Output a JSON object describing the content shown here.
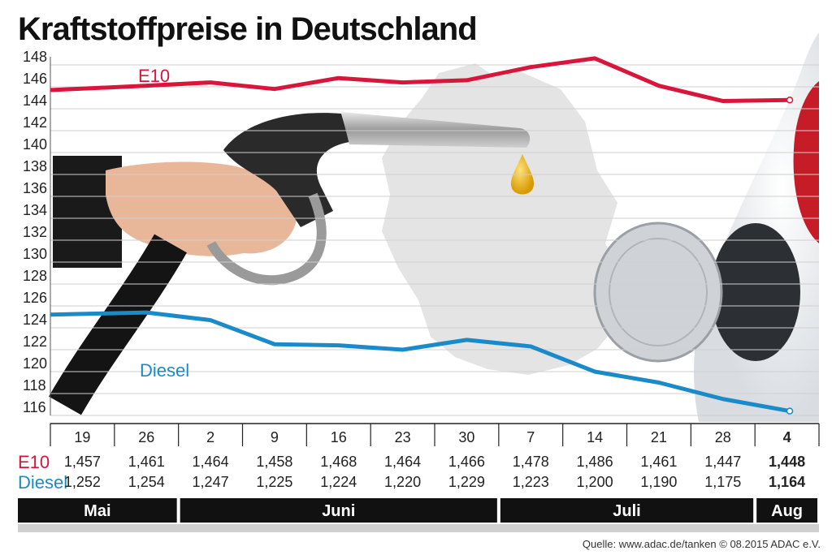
{
  "title": "Kraftstoffpreise in Deutschland",
  "source": "Quelle: www.adac.de/tanken   © 08.2015  ADAC e.V.",
  "colors": {
    "e10": "#d8153a",
    "diesel": "#1b8ac9",
    "bar": "#111111"
  },
  "chart_data": {
    "type": "line",
    "title": "Kraftstoffpreise in Deutschland",
    "yticks": [
      116,
      118,
      120,
      122,
      124,
      126,
      128,
      130,
      132,
      134,
      136,
      138,
      140,
      142,
      144,
      146,
      148
    ],
    "ylim": [
      115.5,
      149
    ],
    "categories": [
      "19",
      "26",
      "2",
      "9",
      "16",
      "23",
      "30",
      "7",
      "14",
      "21",
      "28",
      "4"
    ],
    "series": [
      {
        "name": "E10",
        "values": [
          145.7,
          146.1,
          146.4,
          145.8,
          146.8,
          146.4,
          146.6,
          147.8,
          148.6,
          146.1,
          144.7,
          144.8
        ],
        "labels": [
          "1,457",
          "1,461",
          "1,464",
          "1,458",
          "1,468",
          "1,464",
          "1,466",
          "1,478",
          "1,486",
          "1,461",
          "1,447",
          "1,448"
        ]
      },
      {
        "name": "Diesel",
        "values": [
          125.2,
          125.4,
          124.7,
          122.5,
          122.4,
          122.0,
          122.9,
          122.3,
          120.0,
          119.0,
          117.5,
          116.4
        ],
        "labels": [
          "1,252",
          "1,254",
          "1,247",
          "1,225",
          "1,224",
          "1,220",
          "1,229",
          "1,223",
          "1,200",
          "1,190",
          "1,175",
          "1,164"
        ]
      }
    ],
    "months": [
      {
        "label": "Mai",
        "from": 0,
        "to": 1
      },
      {
        "label": "Juni",
        "from": 2,
        "to": 6
      },
      {
        "label": "Juli",
        "from": 7,
        "to": 10
      },
      {
        "label": "Aug",
        "from": 11,
        "to": 11
      }
    ],
    "grid": true
  }
}
